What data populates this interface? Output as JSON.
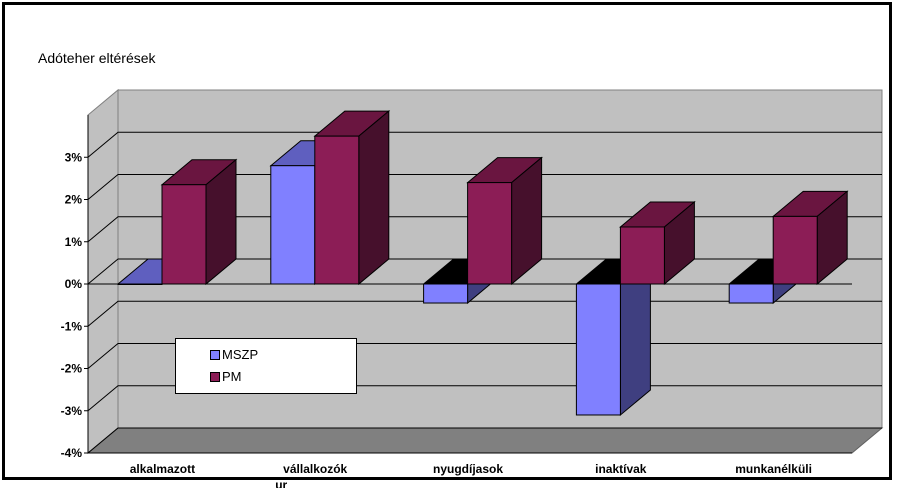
{
  "chart_data": {
    "type": "bar",
    "title": "Adóteher eltérések",
    "categories": [
      "alkalmazott",
      "vállalkozók",
      "nyugdíjasok",
      "inaktívak",
      "munkanélküli"
    ],
    "category_extra": [
      "",
      "ur",
      "",
      "",
      ""
    ],
    "series": [
      {
        "name": "MSZP",
        "values": [
          0.0,
          2.8,
          -0.45,
          -3.1,
          -0.45
        ]
      },
      {
        "name": "PM",
        "values": [
          2.35,
          3.5,
          2.4,
          1.35,
          1.6
        ]
      }
    ],
    "yticks": [
      "-4%",
      "-3%",
      "-2%",
      "-1%",
      "0%",
      "1%",
      "2%",
      "3%"
    ],
    "ylim": [
      -4,
      4
    ],
    "grid": true,
    "legend_position": "inside-lower-left",
    "colors": {
      "mszp_front": "#8080ff",
      "mszp_side": "#3f3f80",
      "mszp_top": "#5f5fbf",
      "pm_front": "#8c1d56",
      "pm_side": "#46102c",
      "pm_top": "#6a1540",
      "wall": "#c0c0c0",
      "floor": "#808080"
    }
  }
}
